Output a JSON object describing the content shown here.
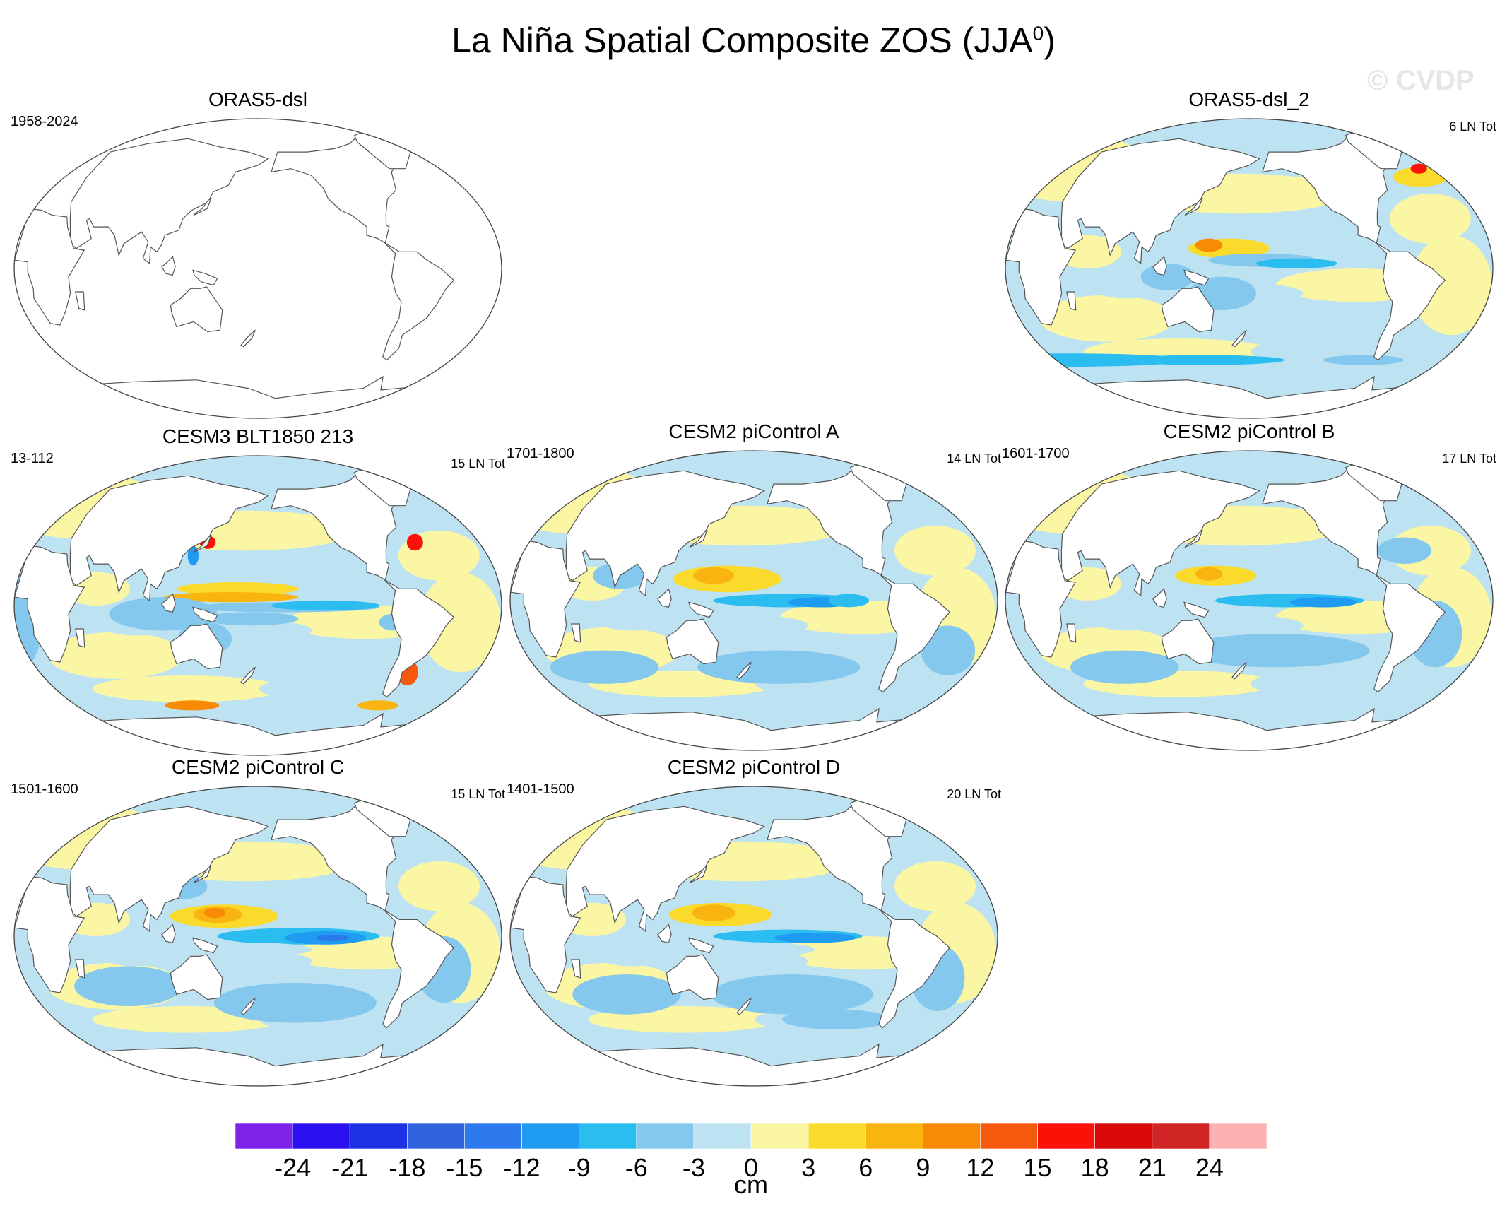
{
  "title": {
    "main": "La Niña Spatial Composite ZOS (JJA",
    "sup": "0",
    "close": ")"
  },
  "watermark": "© CVDP",
  "panels": [
    {
      "id": "p1",
      "title": "ORAS5-dsl",
      "left_label": "1958-2024",
      "right_label": "",
      "filled": false
    },
    {
      "id": "p2",
      "title": "ORAS5-dsl_2",
      "left_label": "",
      "right_label": "6 LN Tot",
      "filled": true
    },
    {
      "id": "p3",
      "title": "CESM3 BLT1850 213",
      "left_label": "13-112",
      "right_label": "15 LN Tot",
      "filled": true
    },
    {
      "id": "p4",
      "title": "CESM2 piControl A",
      "left_label": "1701-1800",
      "right_label": "14 LN Tot",
      "filled": true
    },
    {
      "id": "p5",
      "title": "CESM2 piControl B",
      "left_label": "1601-1700",
      "right_label": "17 LN Tot",
      "filled": true
    },
    {
      "id": "p6",
      "title": "CESM2 piControl C",
      "left_label": "1501-1600",
      "right_label": "15 LN Tot",
      "filled": true
    },
    {
      "id": "p7",
      "title": "CESM2 piControl D",
      "left_label": "1401-1500",
      "right_label": "20 LN Tot",
      "filled": true
    }
  ],
  "colorbar": {
    "units": "cm",
    "tick_labels": [
      "-24",
      "-21",
      "-18",
      "-15",
      "-12",
      "-9",
      "-6",
      "-3",
      "0",
      "3",
      "6",
      "9",
      "12",
      "15",
      "18",
      "21",
      "24"
    ],
    "colors": [
      "#7d24e8",
      "#2b0ff0",
      "#1f33e6",
      "#3163df",
      "#2b79ec",
      "#1f9bf2",
      "#2bbcf0",
      "#85c8ee",
      "#bde2f2",
      "#fbf6a3",
      "#fadb2c",
      "#f9b40f",
      "#f98a05",
      "#f5590d",
      "#fa1208",
      "#d90808",
      "#cf2525",
      "#fcb2b2"
    ]
  }
}
